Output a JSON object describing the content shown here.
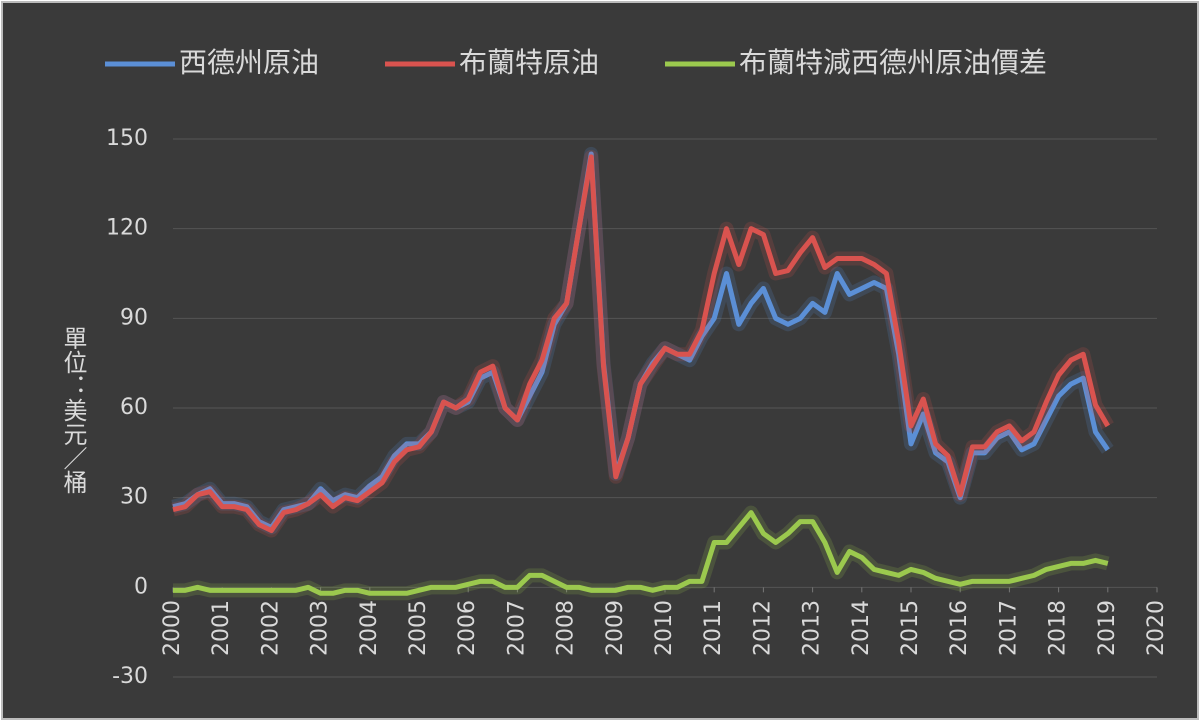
{
  "chart_data": {
    "type": "line",
    "y_label": "單位：美元／桶",
    "x": [
      2000,
      2000.25,
      2000.5,
      2000.75,
      2001,
      2001.25,
      2001.5,
      2001.75,
      2002,
      2002.25,
      2002.5,
      2002.75,
      2003,
      2003.25,
      2003.5,
      2003.75,
      2004,
      2004.25,
      2004.5,
      2004.75,
      2005,
      2005.25,
      2005.5,
      2005.75,
      2006,
      2006.25,
      2006.5,
      2006.75,
      2007,
      2007.25,
      2007.5,
      2007.75,
      2008,
      2008.25,
      2008.5,
      2008.75,
      2009,
      2009.25,
      2009.5,
      2009.75,
      2010,
      2010.25,
      2010.5,
      2010.75,
      2011,
      2011.25,
      2011.5,
      2011.75,
      2012,
      2012.25,
      2012.5,
      2012.75,
      2013,
      2013.25,
      2013.5,
      2013.75,
      2014,
      2014.25,
      2014.5,
      2014.75,
      2015,
      2015.25,
      2015.5,
      2015.75,
      2016,
      2016.25,
      2016.5,
      2016.75,
      2017,
      2017.25,
      2017.5,
      2017.75,
      2018,
      2018.25,
      2018.5,
      2018.75,
      2019
    ],
    "series": [
      {
        "name": "西德州原油",
        "color": "#5b8fd6",
        "values": [
          27,
          28,
          31,
          33,
          28,
          28,
          27,
          22,
          20,
          26,
          27,
          28,
          33,
          29,
          31,
          30,
          34,
          37,
          44,
          48,
          48,
          52,
          62,
          60,
          62,
          70,
          72,
          60,
          56,
          64,
          72,
          88,
          95,
          120,
          145,
          75,
          38,
          50,
          68,
          75,
          80,
          78,
          76,
          84,
          90,
          105,
          88,
          95,
          100,
          90,
          88,
          90,
          95,
          92,
          105,
          98,
          100,
          102,
          100,
          78,
          48,
          58,
          45,
          42,
          30,
          45,
          45,
          50,
          52,
          46,
          48,
          56,
          64,
          68,
          70,
          52,
          46
        ]
      },
      {
        "name": "布蘭特原油",
        "color": "#d9534f",
        "values": [
          26,
          27,
          31,
          32,
          27,
          27,
          26,
          21,
          19,
          25,
          26,
          28,
          31,
          27,
          30,
          29,
          32,
          35,
          42,
          46,
          47,
          52,
          62,
          60,
          63,
          72,
          74,
          60,
          56,
          68,
          76,
          90,
          95,
          120,
          144,
          74,
          37,
          50,
          68,
          74,
          80,
          78,
          78,
          86,
          105,
          120,
          108,
          120,
          118,
          105,
          106,
          112,
          117,
          107,
          110,
          110,
          110,
          108,
          105,
          82,
          54,
          63,
          48,
          44,
          31,
          47,
          47,
          52,
          54,
          49,
          52,
          62,
          71,
          76,
          78,
          61,
          54
        ]
      },
      {
        "name": "布蘭特減西德州原油價差",
        "color": "#9bc94e",
        "values": [
          -1,
          -1,
          0,
          -1,
          -1,
          -1,
          -1,
          -1,
          -1,
          -1,
          -1,
          0,
          -2,
          -2,
          -1,
          -1,
          -2,
          -2,
          -2,
          -2,
          -1,
          0,
          0,
          0,
          1,
          2,
          2,
          0,
          0,
          4,
          4,
          2,
          0,
          0,
          -1,
          -1,
          -1,
          0,
          0,
          -1,
          0,
          0,
          2,
          2,
          15,
          15,
          20,
          25,
          18,
          15,
          18,
          22,
          22,
          15,
          5,
          12,
          10,
          6,
          5,
          4,
          6,
          5,
          3,
          2,
          1,
          2,
          2,
          2,
          2,
          3,
          4,
          6,
          7,
          8,
          8,
          9,
          8
        ]
      }
    ],
    "xlim": [
      2000,
      2020
    ],
    "xticks": [
      2000,
      2001,
      2002,
      2003,
      2004,
      2005,
      2006,
      2007,
      2008,
      2009,
      2010,
      2011,
      2012,
      2013,
      2014,
      2015,
      2016,
      2017,
      2018,
      2019,
      2020
    ],
    "ylim": [
      -30,
      150
    ],
    "yticks": [
      -30,
      0,
      30,
      60,
      90,
      120,
      150
    ],
    "grid": true
  }
}
